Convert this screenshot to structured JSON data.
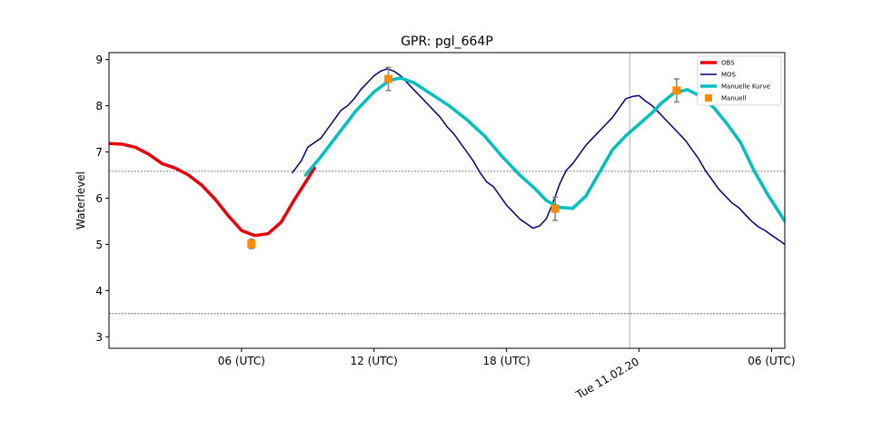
{
  "chart_data": {
    "type": "line",
    "title": "GPR: pgl_664P",
    "xlabel": "",
    "ylabel": "Waterlevel",
    "x_unit": "hours (UTC), 0 = 00 UTC on the plotted day",
    "xlim": [
      0,
      30.6
    ],
    "ylim": [
      2.75,
      9.15
    ],
    "yticks": [
      3,
      4,
      5,
      6,
      7,
      8,
      9
    ],
    "xticks": [
      {
        "x": 6,
        "label": "06 (UTC)"
      },
      {
        "x": 12,
        "label": "12 (UTC)"
      },
      {
        "x": 18,
        "label": "18 (UTC)"
      },
      {
        "x": 24,
        "label": "Tue 11.02.20"
      },
      {
        "x": 30,
        "label": "06 (UTC)"
      }
    ],
    "hlines": [
      6.58,
      3.5
    ],
    "vline": 23.58,
    "legend_placement": "top-right",
    "series": [
      {
        "name": "OBS",
        "color": "#e8000b",
        "x": [
          0,
          0.6,
          1.2,
          1.8,
          2.4,
          3.0,
          3.6,
          4.2,
          4.8,
          5.4,
          6.0,
          6.6,
          7.2,
          7.8,
          8.4,
          9.0,
          9.3
        ],
        "y": [
          7.18,
          7.17,
          7.1,
          6.95,
          6.75,
          6.65,
          6.5,
          6.28,
          5.98,
          5.62,
          5.3,
          5.19,
          5.23,
          5.48,
          5.97,
          6.42,
          6.65
        ]
      },
      {
        "name": "MOS",
        "color": "#00007f",
        "x": [
          8.3,
          8.7,
          9.0,
          9.3,
          9.6,
          9.9,
          10.2,
          10.5,
          10.8,
          11.1,
          11.4,
          11.7,
          12.0,
          12.3,
          12.6,
          12.9,
          13.2,
          13.5,
          13.8,
          14.1,
          14.4,
          14.7,
          15.0,
          15.3,
          15.6,
          15.9,
          16.2,
          16.5,
          16.8,
          17.1,
          17.4,
          17.7,
          18.0,
          18.3,
          18.6,
          18.9,
          19.2,
          19.5,
          19.8,
          20.1,
          20.4,
          20.7,
          21.0,
          21.3,
          21.6,
          21.9,
          22.2,
          22.5,
          22.8,
          23.1,
          23.4,
          23.7,
          24.0,
          24.3,
          24.6,
          24.9,
          25.2,
          25.5,
          25.8,
          26.1,
          26.4,
          26.7,
          27.0,
          27.3,
          27.6,
          27.9,
          28.2,
          28.5,
          28.8,
          29.1,
          29.4,
          29.7,
          30.0,
          30.3,
          30.6
        ],
        "y": [
          6.55,
          6.8,
          7.1,
          7.2,
          7.3,
          7.5,
          7.7,
          7.9,
          8.0,
          8.15,
          8.35,
          8.5,
          8.65,
          8.75,
          8.8,
          8.75,
          8.65,
          8.5,
          8.35,
          8.2,
          8.05,
          7.9,
          7.75,
          7.55,
          7.4,
          7.2,
          7.0,
          6.8,
          6.55,
          6.35,
          6.25,
          6.05,
          5.85,
          5.7,
          5.55,
          5.45,
          5.35,
          5.4,
          5.55,
          5.9,
          6.3,
          6.6,
          6.75,
          6.95,
          7.15,
          7.3,
          7.45,
          7.6,
          7.75,
          7.95,
          8.15,
          8.2,
          8.22,
          8.1,
          8.0,
          7.85,
          7.7,
          7.55,
          7.4,
          7.25,
          7.05,
          6.85,
          6.6,
          6.4,
          6.2,
          6.05,
          5.9,
          5.8,
          5.65,
          5.5,
          5.38,
          5.3,
          5.2,
          5.1,
          5.0
        ]
      },
      {
        "name": "Manuelle Kurve",
        "color": "#00bfbf",
        "x": [
          8.9,
          9.6,
          10.4,
          11.2,
          12.0,
          12.7,
          13.2,
          13.8,
          14.6,
          15.4,
          16.2,
          17.0,
          17.8,
          18.6,
          19.3,
          19.8,
          20.4,
          21.0,
          21.6,
          22.2,
          22.8,
          23.4,
          24.0,
          24.6,
          25.0,
          25.6,
          26.2,
          26.8,
          27.4,
          28.0,
          28.6,
          29.2,
          29.8,
          30.6
        ],
        "y": [
          6.5,
          6.9,
          7.4,
          7.9,
          8.3,
          8.55,
          8.6,
          8.5,
          8.25,
          8.0,
          7.7,
          7.35,
          6.9,
          6.5,
          6.2,
          5.95,
          5.8,
          5.78,
          6.05,
          6.55,
          7.05,
          7.35,
          7.6,
          7.85,
          8.05,
          8.28,
          8.35,
          8.2,
          7.95,
          7.6,
          7.2,
          6.6,
          6.1,
          5.5
        ]
      }
    ],
    "points": {
      "name": "Manuell",
      "color": "#ff8c00",
      "x": [
        6.45,
        12.65,
        20.2,
        25.7
      ],
      "y": [
        5.01,
        8.58,
        5.77,
        8.33
      ],
      "yerr": [
        0.1,
        0.25,
        0.25,
        0.25
      ]
    }
  }
}
